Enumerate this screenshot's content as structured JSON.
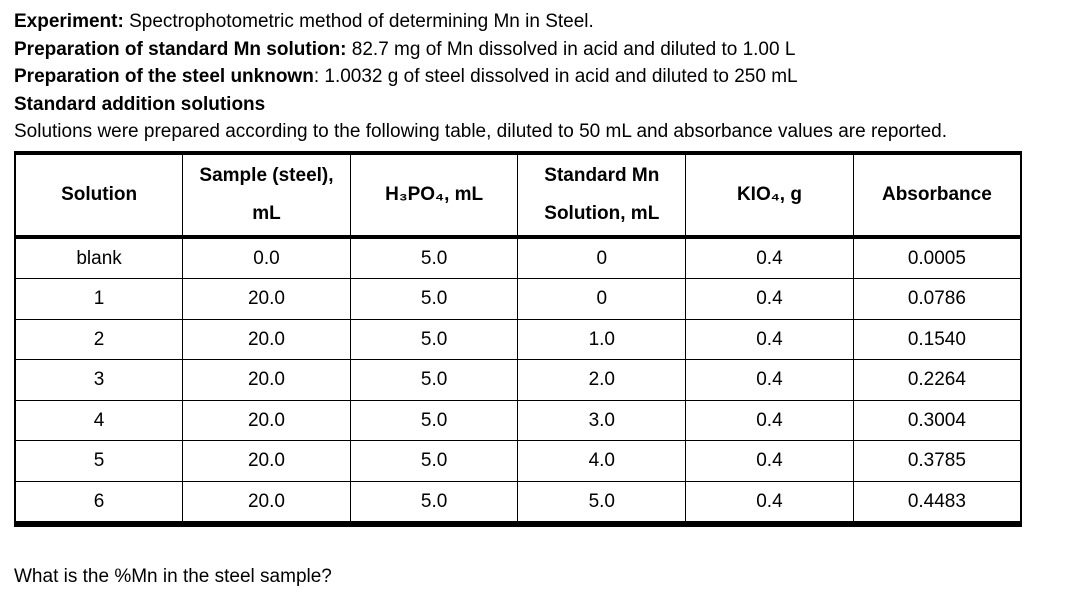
{
  "intro": {
    "lines": [
      {
        "bold": "Experiment:",
        "rest": " Spectrophotometric method of determining Mn in Steel."
      },
      {
        "bold": "Preparation of standard Mn solution:",
        "rest": " 82.7 mg of Mn dissolved in acid and diluted to 1.00 L"
      },
      {
        "bold": "Preparation of the steel unknown",
        "rest": ": 1.0032 g of steel dissolved in acid and diluted to 250 mL"
      },
      {
        "bold": "Standard addition solutions",
        "rest": ""
      },
      {
        "bold": "",
        "rest": "Solutions were prepared according to the following table, diluted to 50 mL and absorbance values are reported."
      }
    ]
  },
  "table": {
    "headers": [
      "Solution",
      "Sample (steel),\nmL",
      "H₃PO₄, mL",
      "Standard Mn\nSolution, mL",
      "KIO₄, g",
      "Absorbance"
    ],
    "rows": [
      [
        "blank",
        "0.0",
        "5.0",
        "0",
        "0.4",
        "0.0005"
      ],
      [
        "1",
        "20.0",
        "5.0",
        "0",
        "0.4",
        "0.0786"
      ],
      [
        "2",
        "20.0",
        "5.0",
        "1.0",
        "0.4",
        "0.1540"
      ],
      [
        "3",
        "20.0",
        "5.0",
        "2.0",
        "0.4",
        "0.2264"
      ],
      [
        "4",
        "20.0",
        "5.0",
        "3.0",
        "0.4",
        "0.3004"
      ],
      [
        "5",
        "20.0",
        "5.0",
        "4.0",
        "0.4",
        "0.3785"
      ],
      [
        "6",
        "20.0",
        "5.0",
        "5.0",
        "0.4",
        "0.4483"
      ]
    ]
  },
  "question": "What is the %Mn in the steel sample?"
}
